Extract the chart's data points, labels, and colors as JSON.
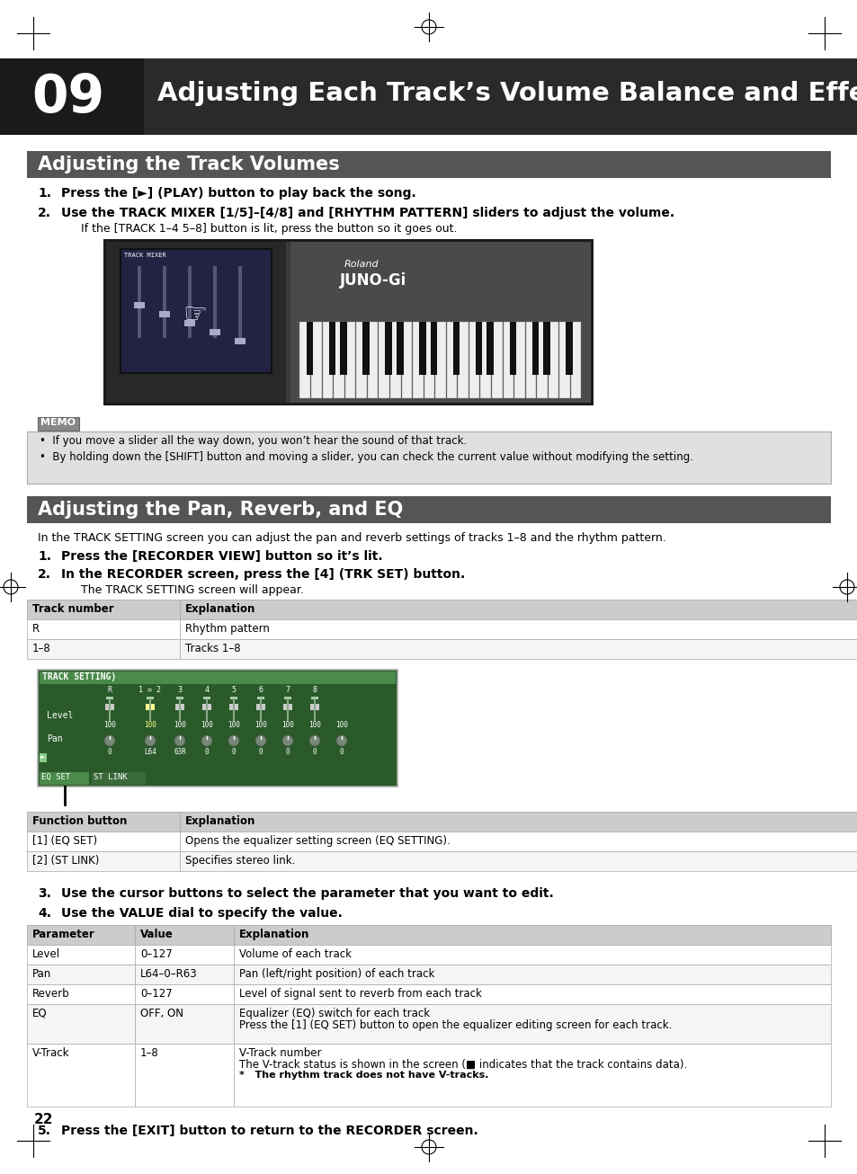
{
  "page_bg": "#ffffff",
  "header_bg": "#2a2a2a",
  "header_number": "09",
  "header_title": "Adjusting Each Track’s Volume Balance and Effects",
  "section1_bg": "#555555",
  "section1_title": "Adjusting the Track Volumes",
  "section2_bg": "#555555",
  "section2_title": "Adjusting the Pan, Reverb, and EQ",
  "step1_text": "Press the [►] (PLAY) button to play back the song.",
  "step2_text": "Use the TRACK MIXER [1/5]–[4/8] and [RHYTHM PATTERN] sliders to adjust the volume.",
  "step2_sub": "If the [TRACK 1–4 5–8] button is lit, press the button so it goes out.",
  "memo_label": "MEMO",
  "memo_item1": "If you move a slider all the way down, you won’t hear the sound of that track.",
  "memo_item2": "By holding down the [SHIFT] button and moving a slider, you can check the current value without modifying the setting.",
  "pan_intro": "In the TRACK SETTING screen you can adjust the pan and reverb settings of tracks 1–8 and the rhythm pattern.",
  "pan_step1": "Press the [RECORDER VIEW] button so it’s lit.",
  "pan_step2": "In the RECORDER screen, press the [4] (TRK SET) button.",
  "pan_step2_sub": "The TRACK SETTING screen will appear.",
  "table1_headers": [
    "Track number",
    "Explanation"
  ],
  "table1_rows": [
    [
      "R",
      "Rhythm pattern"
    ],
    [
      "1–8",
      "Tracks 1–8"
    ]
  ],
  "table2_headers": [
    "Function button",
    "Explanation"
  ],
  "table2_rows": [
    [
      "[1] (EQ SET)",
      "Opens the equalizer setting screen (EQ SETTING)."
    ],
    [
      "[2] (ST LINK)",
      "Specifies stereo link."
    ]
  ],
  "step3_text": "Use the cursor buttons to select the parameter that you want to edit.",
  "step4_text": "Use the VALUE dial to specify the value.",
  "table3_headers": [
    "Parameter",
    "Value",
    "Explanation"
  ],
  "table3_rows": [
    [
      "Level",
      "0–127",
      "Volume of each track"
    ],
    [
      "Pan",
      "L64–0–R63",
      "Pan (left/right position) of each track"
    ],
    [
      "Reverb",
      "0–127",
      "Level of signal sent to reverb from each track"
    ],
    [
      "EQ",
      "OFF, ON",
      "Equalizer (EQ) switch for each track\nPress the [1] (EQ SET) button to open the equalizer editing screen for each track."
    ],
    [
      "V-Track",
      "1–8",
      "V-Track number\nThe V-track status is shown in the screen (■ indicates that the track contains data).\n*   The rhythm track does not have V-tracks."
    ]
  ],
  "step5_text": "Press the [EXIT] button to return to the RECORDER screen.",
  "page_number": "22",
  "table_header_bg": "#cccccc",
  "table_border": "#aaaaaa",
  "white": "#ffffff",
  "black": "#000000",
  "memo_bg": "#e0e0e0",
  "ts_screen_bg": "#2a5a2a",
  "ts_header_bg": "#4a8a4a"
}
